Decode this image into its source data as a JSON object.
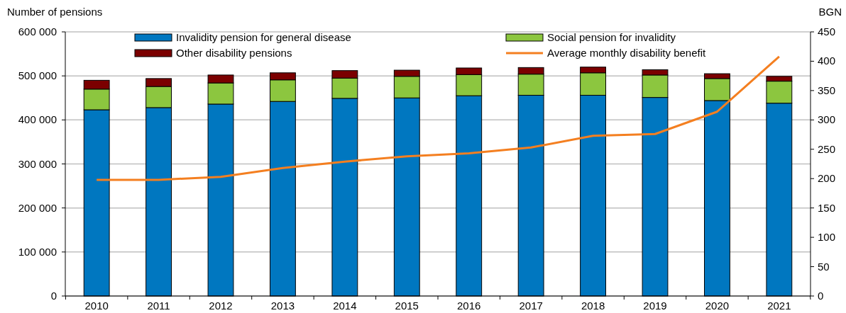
{
  "chart_data": {
    "type": "bar",
    "stacked": true,
    "ylabel": "Number of pensions",
    "y2label": "BGN",
    "categories": [
      "2010",
      "2011",
      "2012",
      "2013",
      "2014",
      "2015",
      "2016",
      "2017",
      "2018",
      "2019",
      "2020",
      "2021"
    ],
    "series": [
      {
        "name": "Invalidity pension for general disease",
        "color": "#0077c0",
        "values": [
          423000,
          428000,
          436000,
          442000,
          449000,
          450000,
          455000,
          456000,
          456000,
          451000,
          444000,
          438000
        ]
      },
      {
        "name": "Social pension for invalidity",
        "color": "#8cc63f",
        "values": [
          47000,
          48000,
          48000,
          49000,
          46000,
          49000,
          48000,
          48000,
          51000,
          51000,
          50000,
          50000
        ]
      },
      {
        "name": "Other disability pensions",
        "color": "#7b0000",
        "values": [
          20000,
          18000,
          18000,
          16000,
          17000,
          14000,
          15000,
          15000,
          13000,
          12000,
          11000,
          11000
        ]
      },
      {
        "name": "Average monthly disability benefit",
        "type": "line",
        "axis": "y2",
        "color": "#f47f20",
        "values": [
          198,
          198,
          203,
          218,
          229,
          238,
          243,
          253,
          273,
          276,
          314,
          408
        ]
      }
    ],
    "ylim": [
      0,
      600000
    ],
    "yticks": [
      0,
      {
        "value": 100000,
        "label": "100 000"
      },
      {
        "value": 200000,
        "label": "200 000"
      },
      {
        "value": 300000,
        "label": "300 000"
      },
      {
        "value": 400000,
        "label": "400 000"
      },
      {
        "value": 500000,
        "label": "500 000"
      },
      {
        "value": 600000,
        "label": "600 000"
      }
    ],
    "y2lim": [
      0,
      450
    ],
    "y2ticks": [
      0,
      50,
      100,
      150,
      200,
      250,
      300,
      350,
      400,
      450
    ],
    "grid": "y",
    "legend": "top"
  }
}
